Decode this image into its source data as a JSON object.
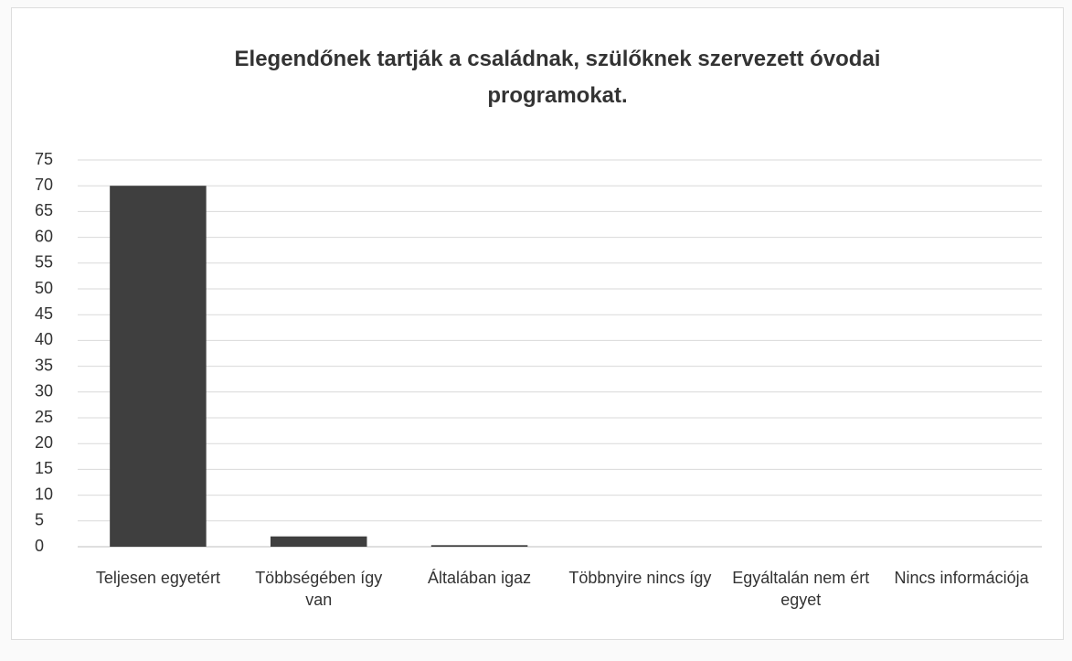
{
  "chart_data": {
    "type": "bar",
    "title": "Elegendőnek tartják a családnak, szülőknek szervezett óvodai programokat.",
    "categories": [
      "Teljesen egyetért",
      "Többségében így van",
      "Általában igaz",
      "Többnyire nincs így",
      "Egyáltalán nem ért egyet",
      "Nincs információja"
    ],
    "values": [
      70,
      2,
      0.3,
      0,
      0,
      0
    ],
    "color": "#3f3f3f",
    "ylim": [
      0,
      75
    ],
    "yticks": [
      0,
      5,
      10,
      15,
      20,
      25,
      30,
      35,
      40,
      45,
      50,
      55,
      60,
      65,
      70,
      75
    ],
    "grid": true
  }
}
